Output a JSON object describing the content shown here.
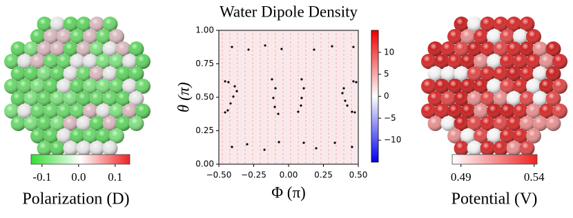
{
  "chart_data": [
    {
      "type": "colorbar",
      "label": "Polarization (D)",
      "clim": [
        -0.13,
        0.14
      ],
      "ticks": [
        -0.1,
        {
          "value": 0,
          "label": "0.0"
        },
        0.1
      ],
      "colors": [
        "#33dd33",
        "#ffffff",
        "#ee2222"
      ]
    },
    {
      "type": "heatmap",
      "title": "Water Dipole Density",
      "xlabel": "Φ (π)",
      "ylabel": "θ (π)",
      "xlim": [
        -0.5,
        0.5
      ],
      "xticks": [
        {
          "value": -0.5,
          "label": "−0.50"
        },
        {
          "value": -0.25,
          "label": "−0.25"
        },
        {
          "value": 0,
          "label": "0.00"
        },
        {
          "value": 0.25,
          "label": "0.25"
        },
        {
          "value": 0.5,
          "label": "0.50"
        }
      ],
      "ylim": [
        0,
        1
      ],
      "yticks": [
        {
          "value": 0,
          "label": "0.00"
        },
        {
          "value": 0.25,
          "label": "0.25"
        },
        {
          "value": 0.5,
          "label": "0.50"
        },
        {
          "value": 0.75,
          "label": "0.75"
        },
        {
          "value": 1,
          "label": "1.00"
        }
      ],
      "colorbar": {
        "clim": [
          -15,
          15
        ],
        "ticks": [
          10,
          5,
          0,
          {
            "value": -5,
            "label": "−5"
          },
          {
            "value": -10,
            "label": "−10"
          }
        ],
        "colors": [
          "#0000ee",
          "#ffffff",
          "#ee0000"
        ]
      },
      "series": [
        {
          "color": "#000000",
          "x": [
            -0.406,
            -0.287,
            -0.168,
            -0.05,
            0.183,
            0.312,
            0.465,
            -0.455,
            -0.431,
            -0.386,
            -0.371,
            -0.396,
            -0.416,
            -0.436,
            -0.455,
            -0.119,
            -0.094,
            -0.109,
            -0.099,
            -0.074,
            0.094,
            0.109,
            0.094,
            0.089,
            0.069,
            0.465,
            0.485,
            0.396,
            0.386,
            0.406,
            0.421,
            0.455,
            0.475,
            -0.406,
            -0.297,
            -0.173,
            -0.069,
            0.109,
            0.198,
            0.332,
            0.455
          ],
          "y": [
            0.876,
            0.856,
            0.887,
            0.861,
            0.856,
            0.881,
            0.876,
            0.619,
            0.613,
            0.582,
            0.546,
            0.505,
            0.454,
            0.402,
            0.387,
            0.634,
            0.567,
            0.495,
            0.428,
            0.376,
            0.634,
            0.567,
            0.495,
            0.438,
            0.392,
            0.619,
            0.613,
            0.567,
            0.531,
            0.474,
            0.438,
            0.392,
            0.387,
            0.129,
            0.149,
            0.108,
            0.165,
            0.16,
            0.119,
            0.16,
            0.129
          ]
        }
      ]
    },
    {
      "type": "colorbar",
      "label": "Potential (V)",
      "clim": [
        0.484,
        0.542
      ],
      "ticks": [
        0.49,
        0.54
      ],
      "colors": [
        "#ffffff",
        "#ee2222"
      ]
    }
  ]
}
